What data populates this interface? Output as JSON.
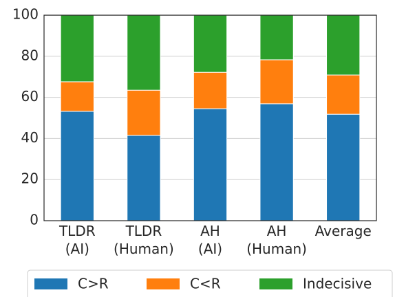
{
  "chart_data": {
    "type": "stacked_bar",
    "categories": [
      "TLDR\n(AI)",
      "TLDR\n(Human)",
      "AH\n(AI)",
      "AH\n(Human)",
      "Average"
    ],
    "series": [
      {
        "name": "C>R",
        "color": "#1f77b4",
        "values": [
          53.2,
          41.5,
          54.5,
          56.9,
          51.8
        ]
      },
      {
        "name": "C<R",
        "color": "#ff7f0e",
        "values": [
          14.4,
          22.0,
          17.7,
          21.4,
          19.1
        ]
      },
      {
        "name": "Indecisive",
        "color": "#2ca02c",
        "values": [
          32.4,
          36.5,
          27.8,
          21.7,
          29.1
        ]
      }
    ],
    "ylim": [
      0,
      100
    ],
    "yticks": [
      0,
      20,
      40,
      60,
      80,
      100
    ],
    "grid": true,
    "legend": "bottom"
  }
}
